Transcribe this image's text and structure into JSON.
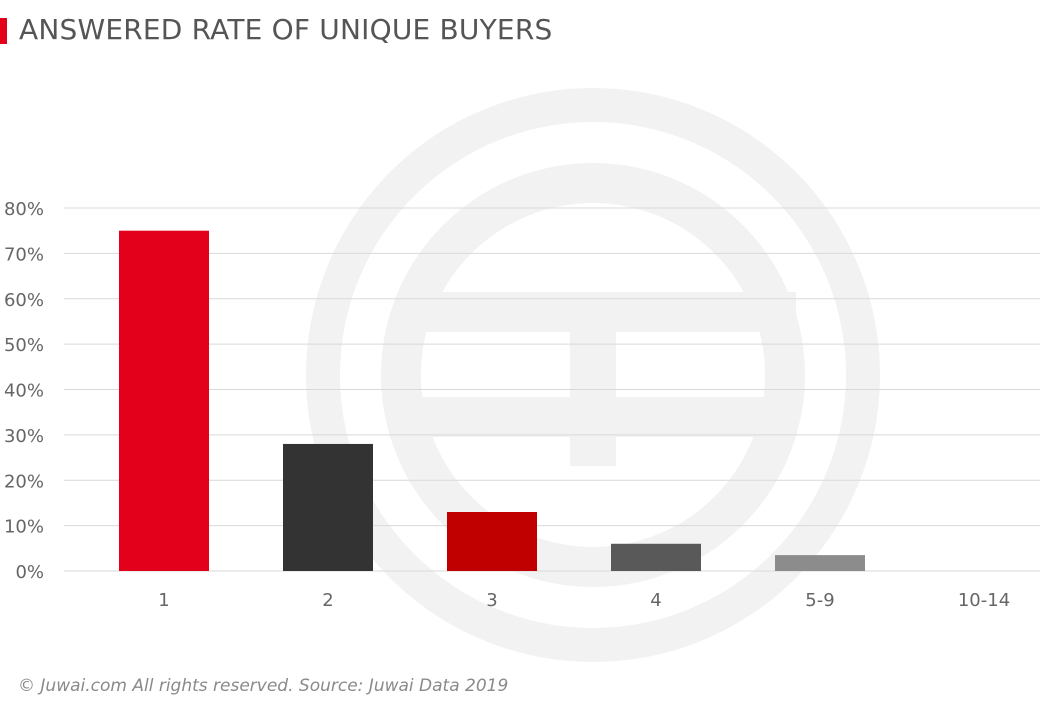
{
  "title": "ANSWERED RATE OF UNIQUE BUYERS",
  "footer": "© Juwai.com All rights reserved. Source: Juwai Data 2019",
  "colors": {
    "accent": "#e2001a",
    "title_text": "#555555",
    "axis_text": "#666666",
    "gridline": "#d9d9d9",
    "watermark": "#f2f2f2"
  },
  "watermark_icon": "juwai-logo-watermark",
  "chart_data": {
    "type": "bar",
    "title": "ANSWERED RATE OF UNIQUE BUYERS",
    "xlabel": "",
    "ylabel": "",
    "categories": [
      "1",
      "2",
      "3",
      "4",
      "5-9",
      "10-14"
    ],
    "values": [
      75,
      28,
      13,
      6,
      3.5,
      0
    ],
    "bar_colors": [
      "#e2001a",
      "#333333",
      "#c00000",
      "#595959",
      "#8c8c8c",
      "#8c8c8c"
    ],
    "ylim": [
      0,
      80
    ],
    "yticks": [
      "0%",
      "10%",
      "20%",
      "30%",
      "40%",
      "50%",
      "60%",
      "70%",
      "80%"
    ],
    "grid": true,
    "legend": "none"
  }
}
